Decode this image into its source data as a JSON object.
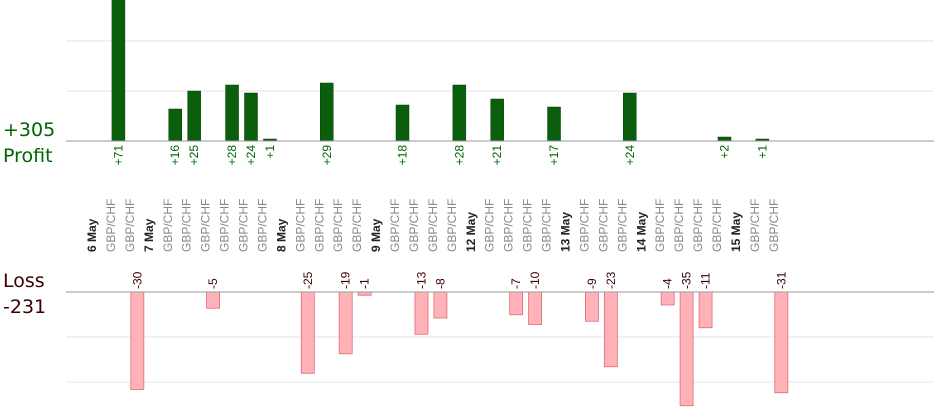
{
  "summary": {
    "profit_total": "+305",
    "profit_label": "Profit",
    "loss_label": "Loss",
    "loss_total": "-231"
  },
  "colors": {
    "profit_bar": "#0b5e0b",
    "profit_text": "#006400",
    "loss_bar_fill": "#ffb3b8",
    "loss_bar_stroke": "#e06a72",
    "loss_text": "#3a0000",
    "pair_text": "#888888",
    "grid": "#e6e6e6",
    "baseline": "#9a9a9a"
  },
  "chart_data": {
    "type": "bar",
    "orientation": "diverging",
    "grid": true,
    "categories": [
      {
        "date": "6 May",
        "trades": [
          {
            "pair": "GBP/CHF",
            "result": 71,
            "label": "+71"
          },
          {
            "pair": "GBP/CHF",
            "result": -30,
            "label": "-30"
          }
        ]
      },
      {
        "date": "7 May",
        "trades": [
          {
            "pair": "GBP/CHF",
            "result": 16,
            "label": "+16"
          },
          {
            "pair": "GBP/CHF",
            "result": 25,
            "label": "+25"
          },
          {
            "pair": "GBP/CHF",
            "result": -5,
            "label": "-5"
          },
          {
            "pair": "GBP/CHF",
            "result": 28,
            "label": "+28"
          },
          {
            "pair": "GBP/CHF",
            "result": 24,
            "label": "+24"
          },
          {
            "pair": "GBP/CHF",
            "result": 1,
            "label": "+1"
          }
        ]
      },
      {
        "date": "8 May",
        "trades": [
          {
            "pair": "GBP/CHF",
            "result": -25,
            "label": "-25"
          },
          {
            "pair": "GBP/CHF",
            "result": 29,
            "label": "+29"
          },
          {
            "pair": "GBP/CHF",
            "result": -19,
            "label": "-19"
          },
          {
            "pair": "GBP/CHF",
            "result": -1,
            "label": "-1"
          }
        ]
      },
      {
        "date": "9 May",
        "trades": [
          {
            "pair": "GBP/CHF",
            "result": 18,
            "label": "+18"
          },
          {
            "pair": "GBP/CHF",
            "result": -13,
            "label": "-13"
          },
          {
            "pair": "GBP/CHF",
            "result": -8,
            "label": "-8"
          },
          {
            "pair": "GBP/CHF",
            "result": 28,
            "label": "+28"
          }
        ]
      },
      {
        "date": "12 May",
        "trades": [
          {
            "pair": "GBP/CHF",
            "result": 21,
            "label": "+21"
          },
          {
            "pair": "GBP/CHF",
            "result": -7,
            "label": "-7"
          },
          {
            "pair": "GBP/CHF",
            "result": -10,
            "label": "-10"
          },
          {
            "pair": "GBP/CHF",
            "result": 17,
            "label": "+17"
          }
        ]
      },
      {
        "date": "13 May",
        "trades": [
          {
            "pair": "GBP/CHF",
            "result": -9,
            "label": "-9"
          },
          {
            "pair": "GBP/CHF",
            "result": -23,
            "label": "-23"
          },
          {
            "pair": "GBP/CHF",
            "result": 24,
            "label": "+24"
          }
        ]
      },
      {
        "date": "14 May",
        "trades": [
          {
            "pair": "GBP/CHF",
            "result": -4,
            "label": "-4"
          },
          {
            "pair": "GBP/CHF",
            "result": -35,
            "label": "-35"
          },
          {
            "pair": "GBP/CHF",
            "result": -11,
            "label": "-11"
          },
          {
            "pair": "GBP/CHF",
            "result": 2,
            "label": "+2"
          }
        ]
      },
      {
        "date": "15 May",
        "trades": [
          {
            "pair": "GBP/CHF",
            "result": 1,
            "label": "+1"
          },
          {
            "pair": "GBP/CHF",
            "result": -31,
            "label": "-31"
          }
        ]
      }
    ]
  }
}
